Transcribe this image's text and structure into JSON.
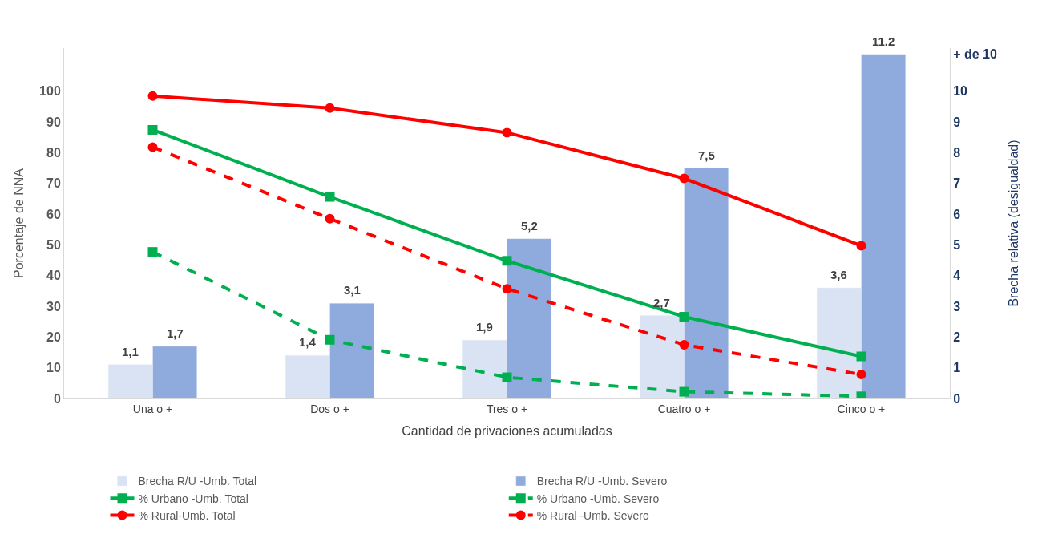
{
  "chart_data": {
    "type": "line",
    "xlabel": "Cantidad de privaciones acumuladas",
    "ylabel": "Porcentaje de NNA",
    "y2label": "Brecha relativa (desigualdad)",
    "categories": [
      "Una o +",
      "Dos o +",
      "Tres o +",
      "Cuatro o +",
      "Cinco o +"
    ],
    "series": [
      {
        "name": "Brecha R/U -Umb. Total",
        "type": "bar",
        "axis": "y2",
        "color": "#dae3f3",
        "values": [
          1.1,
          1.4,
          1.9,
          2.7,
          3.6
        ],
        "value_labels": [
          "1,1",
          "1,4",
          "1,9",
          "2,7",
          "3,6"
        ]
      },
      {
        "name": "Brecha R/U -Umb. Severo",
        "type": "bar",
        "axis": "y2",
        "color": "#8faadc",
        "values": [
          1.7,
          3.1,
          5.2,
          7.5,
          11.2
        ],
        "value_labels": [
          "1,7",
          "3,1",
          "5,2",
          "7,5",
          "11.2"
        ]
      },
      {
        "name": "% Urbano -Umb. Total",
        "color": "#00b050",
        "marker": "square",
        "line_style": "solid",
        "values": [
          87.4,
          65.6,
          44.8,
          26.6,
          13.7
        ]
      },
      {
        "name": "% Urbano -Umb. Severo",
        "color": "#00b050",
        "marker": "square",
        "line_style": "dashed",
        "values": [
          47.7,
          19.1,
          6.9,
          2.2,
          0.7
        ]
      },
      {
        "name": "% Rural-Umb. Total",
        "color": "#ff0000",
        "marker": "circle",
        "line_style": "solid",
        "values": [
          98.4,
          94.5,
          86.5,
          71.6,
          49.7
        ]
      },
      {
        "name": "% Rural -Umb. Severo",
        "color": "#ff0000",
        "marker": "circle",
        "line_style": "dashed",
        "values": [
          81.8,
          58.5,
          35.7,
          17.5,
          7.8
        ]
      }
    ],
    "ylim": [
      0,
      114
    ],
    "yticks": [
      0,
      10,
      20,
      30,
      40,
      50,
      60,
      70,
      80,
      90,
      100
    ],
    "y2lim": [
      0,
      11.4
    ],
    "y2ticks": [
      0,
      1,
      2,
      3,
      4,
      5,
      6,
      7,
      8,
      9,
      10,
      {
        "value": 11.2,
        "label": "+ de 10"
      }
    ],
    "legend": "bottom"
  }
}
